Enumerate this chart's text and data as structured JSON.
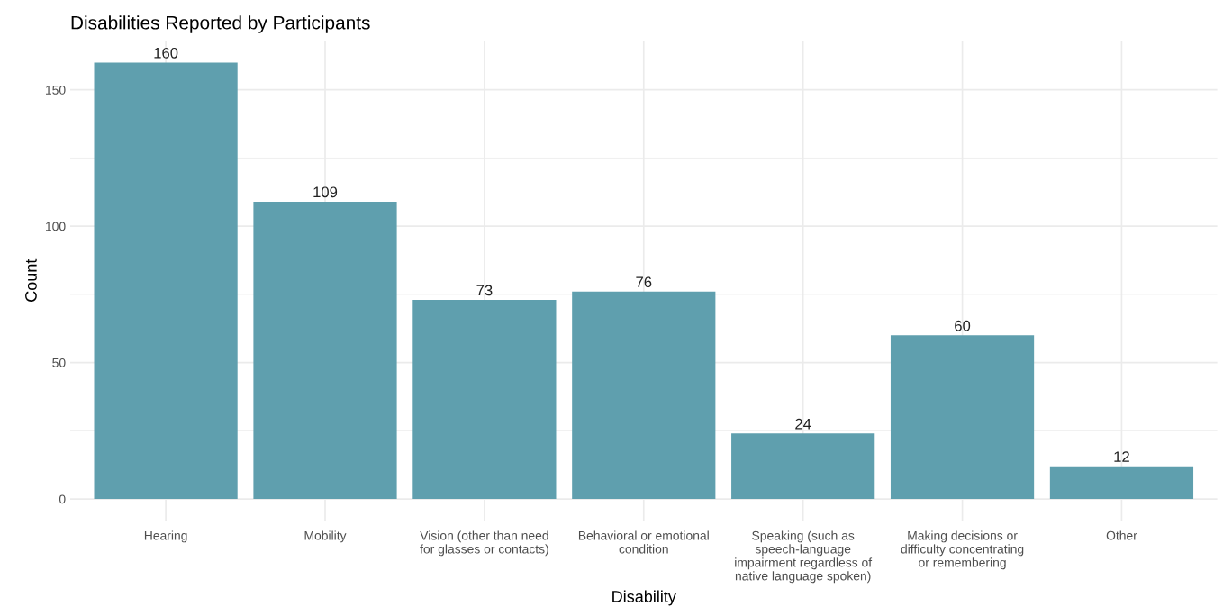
{
  "chart_data": {
    "type": "bar",
    "title": "Disabilities Reported by Participants",
    "xlabel": "Disability",
    "ylabel": "Count",
    "categories": [
      "Hearing",
      "Mobility",
      "Vision (other than need\nfor glasses or contacts)",
      "Behavioral or emotional\ncondition",
      "Speaking (such as\nspeech-language\nimpairment regardless of\nnative language spoken)",
      "Making decisions or\ndifficulty concentrating\nor remembering",
      "Other"
    ],
    "values": [
      160,
      109,
      73,
      76,
      24,
      60,
      12
    ],
    "color": "#5f9fae",
    "ylim": [
      -8,
      168
    ],
    "yticks": [
      0,
      {
        "value": 25,
        "label": null
      },
      50,
      {
        "value": 75,
        "label": null
      },
      100,
      {
        "value": 125,
        "label": null
      },
      150
    ],
    "grid": true,
    "data_labels": true
  }
}
